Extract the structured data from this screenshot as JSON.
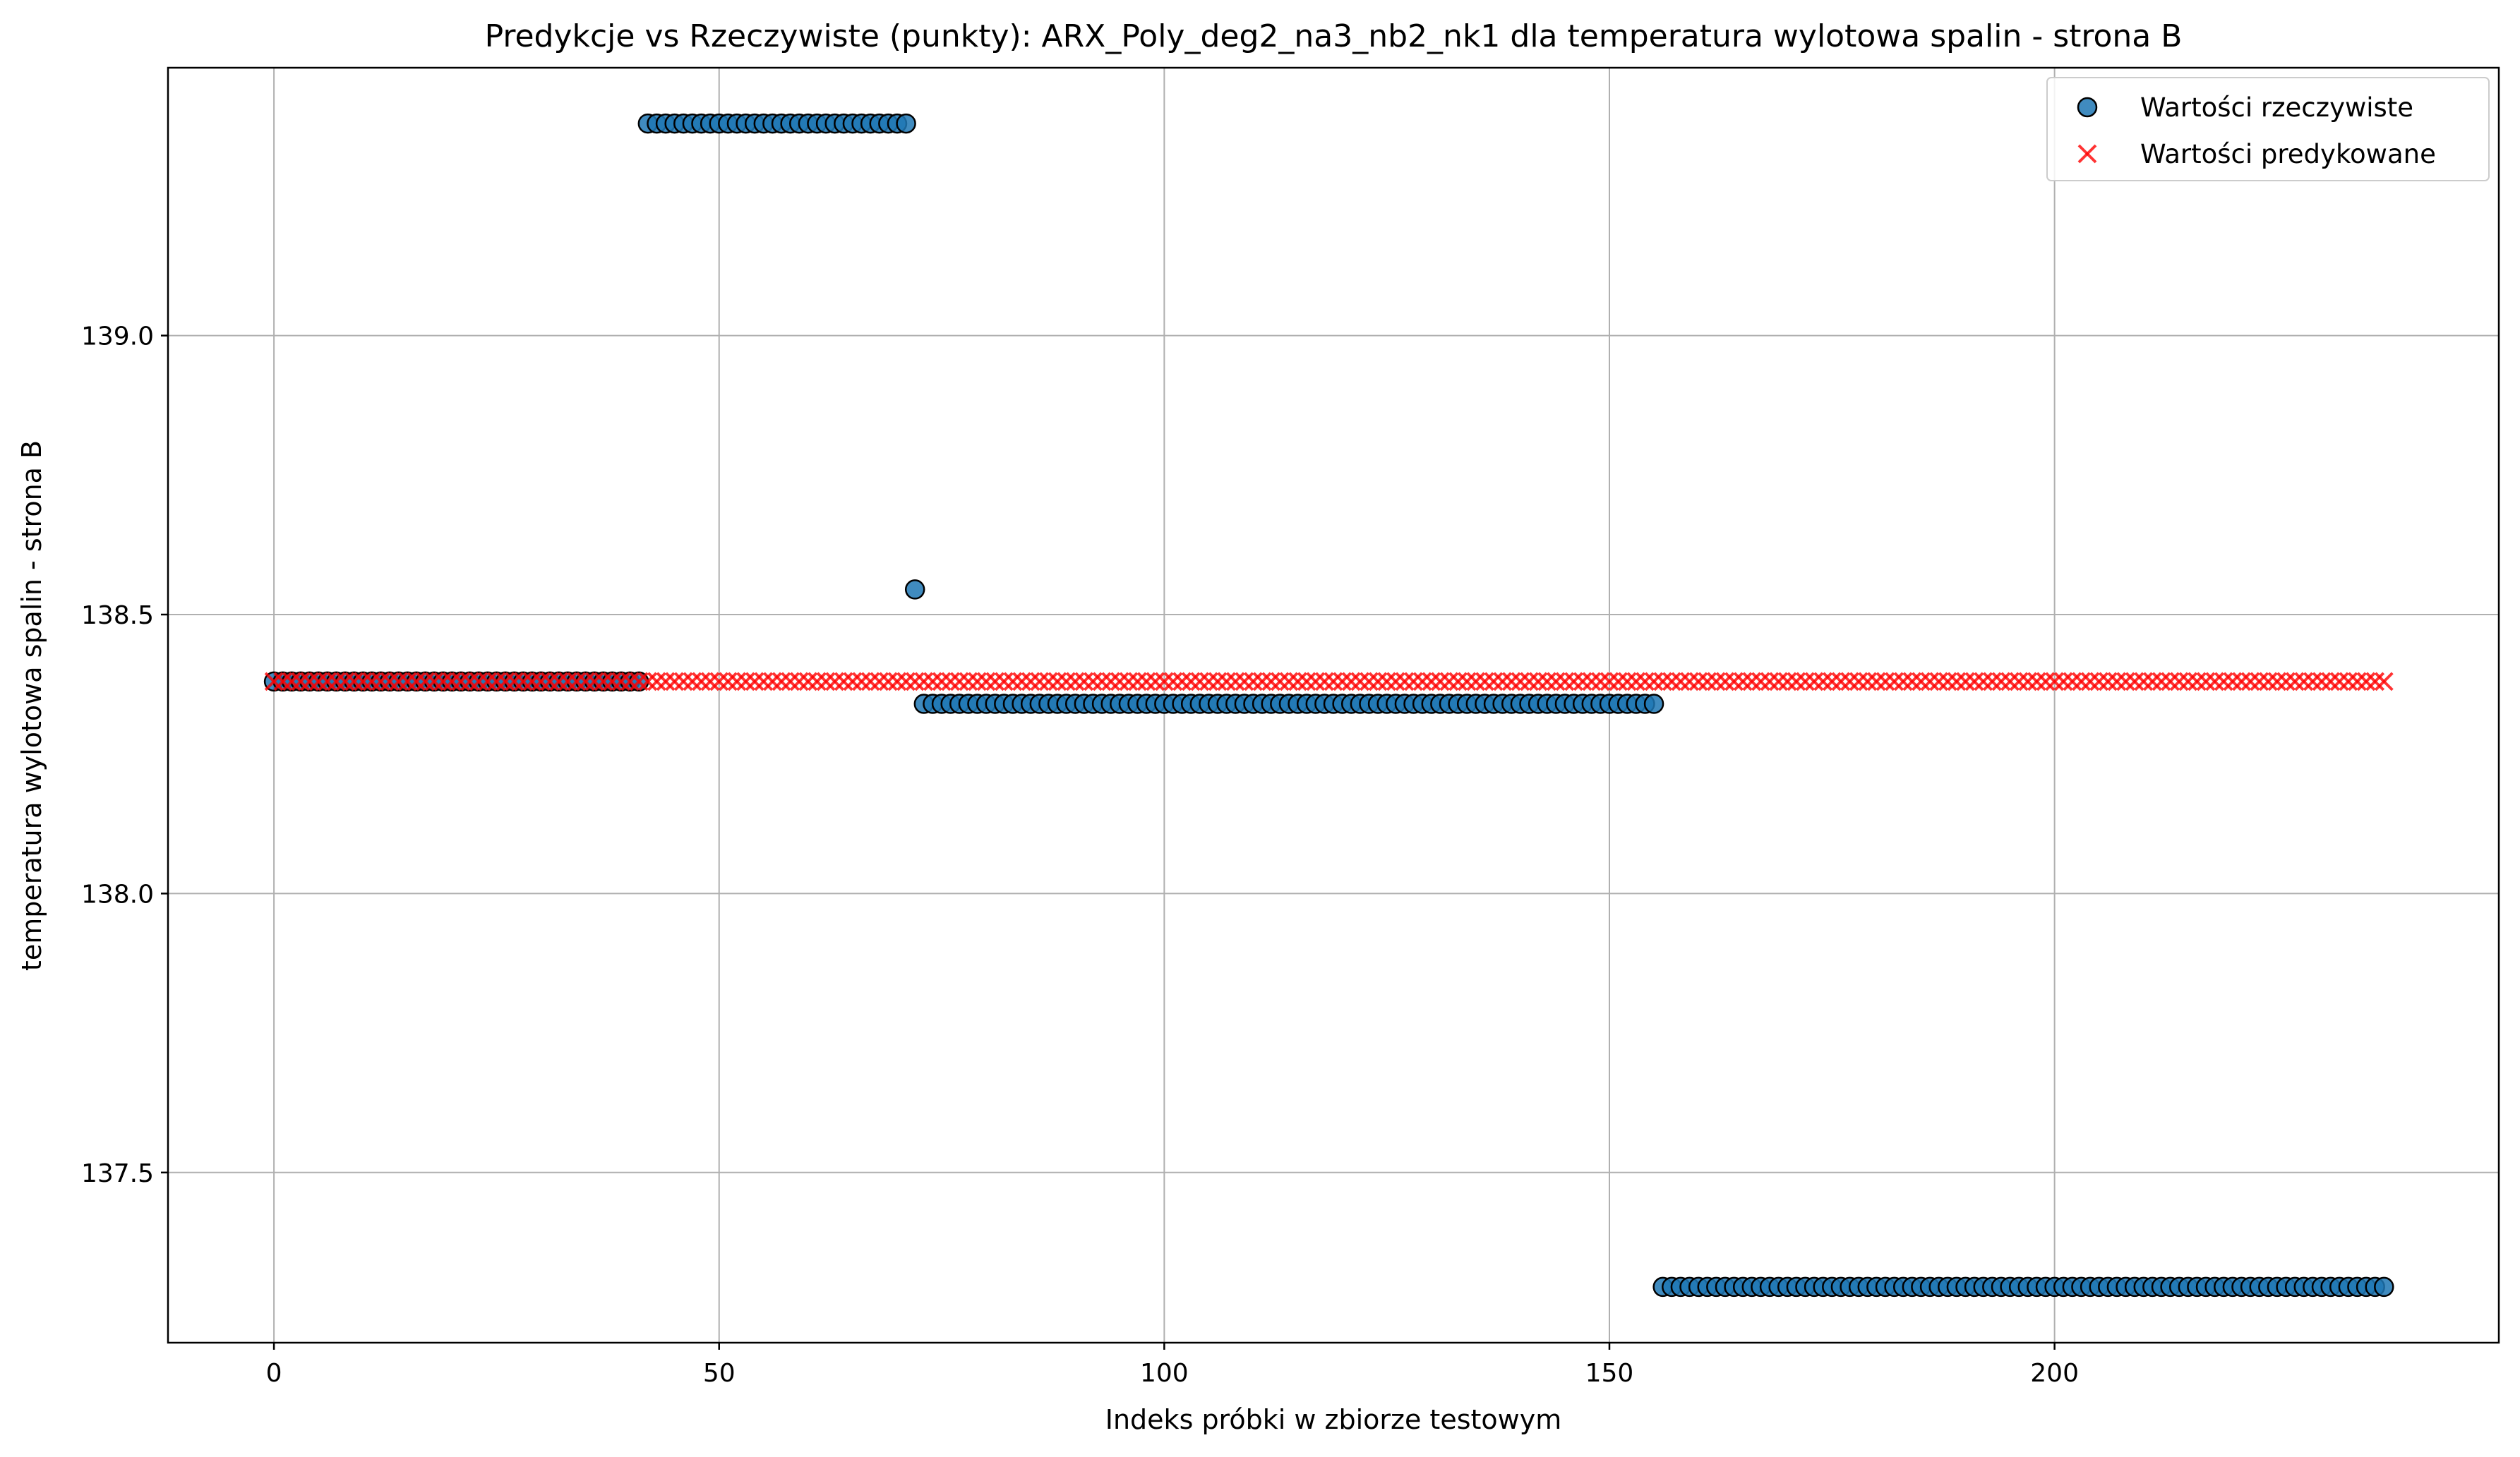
{
  "chart_data": {
    "type": "scatter",
    "title": "Predykcje vs Rzeczywiste (punkty): ARX_Poly_deg2_na3_nb2_nk1 dla temperatura wylotowa spalin - strona B",
    "xlabel": "Indeks próbki w zbiorze testowym",
    "ylabel": "temperatura wylotowa spalin - strona B",
    "xlim": [
      -11.9,
      249.9
    ],
    "ylim": [
      137.195,
      139.48
    ],
    "xticks": [
      0,
      50,
      100,
      150,
      200
    ],
    "xtick_labels": [
      "0",
      "50",
      "100",
      "150",
      "200"
    ],
    "yticks": [
      137.5,
      138.0,
      138.5,
      139.0
    ],
    "ytick_labels": [
      "137.5",
      "138.0",
      "138.5",
      "139.0"
    ],
    "grid": true,
    "legend_position": "top-right",
    "series": [
      {
        "name": "Wartości rzeczywiste",
        "marker": "circle",
        "color": "#1f77b4",
        "edge_color": "#000000",
        "segments": [
          {
            "x_start": 0,
            "x_end": 41,
            "y": 138.38
          },
          {
            "x_start": 42,
            "x_end": 71,
            "y": 139.38
          },
          {
            "x_start": 72,
            "x_end": 72,
            "y": 138.545
          },
          {
            "x_start": 73,
            "x_end": 155,
            "y": 138.34
          },
          {
            "x_start": 156,
            "x_end": 237,
            "y": 137.295
          }
        ]
      },
      {
        "name": "Wartości predykowane",
        "marker": "x",
        "color": "#ff0000",
        "segments": [
          {
            "x_start": 0,
            "x_end": 237,
            "y": 138.38
          }
        ]
      }
    ]
  }
}
